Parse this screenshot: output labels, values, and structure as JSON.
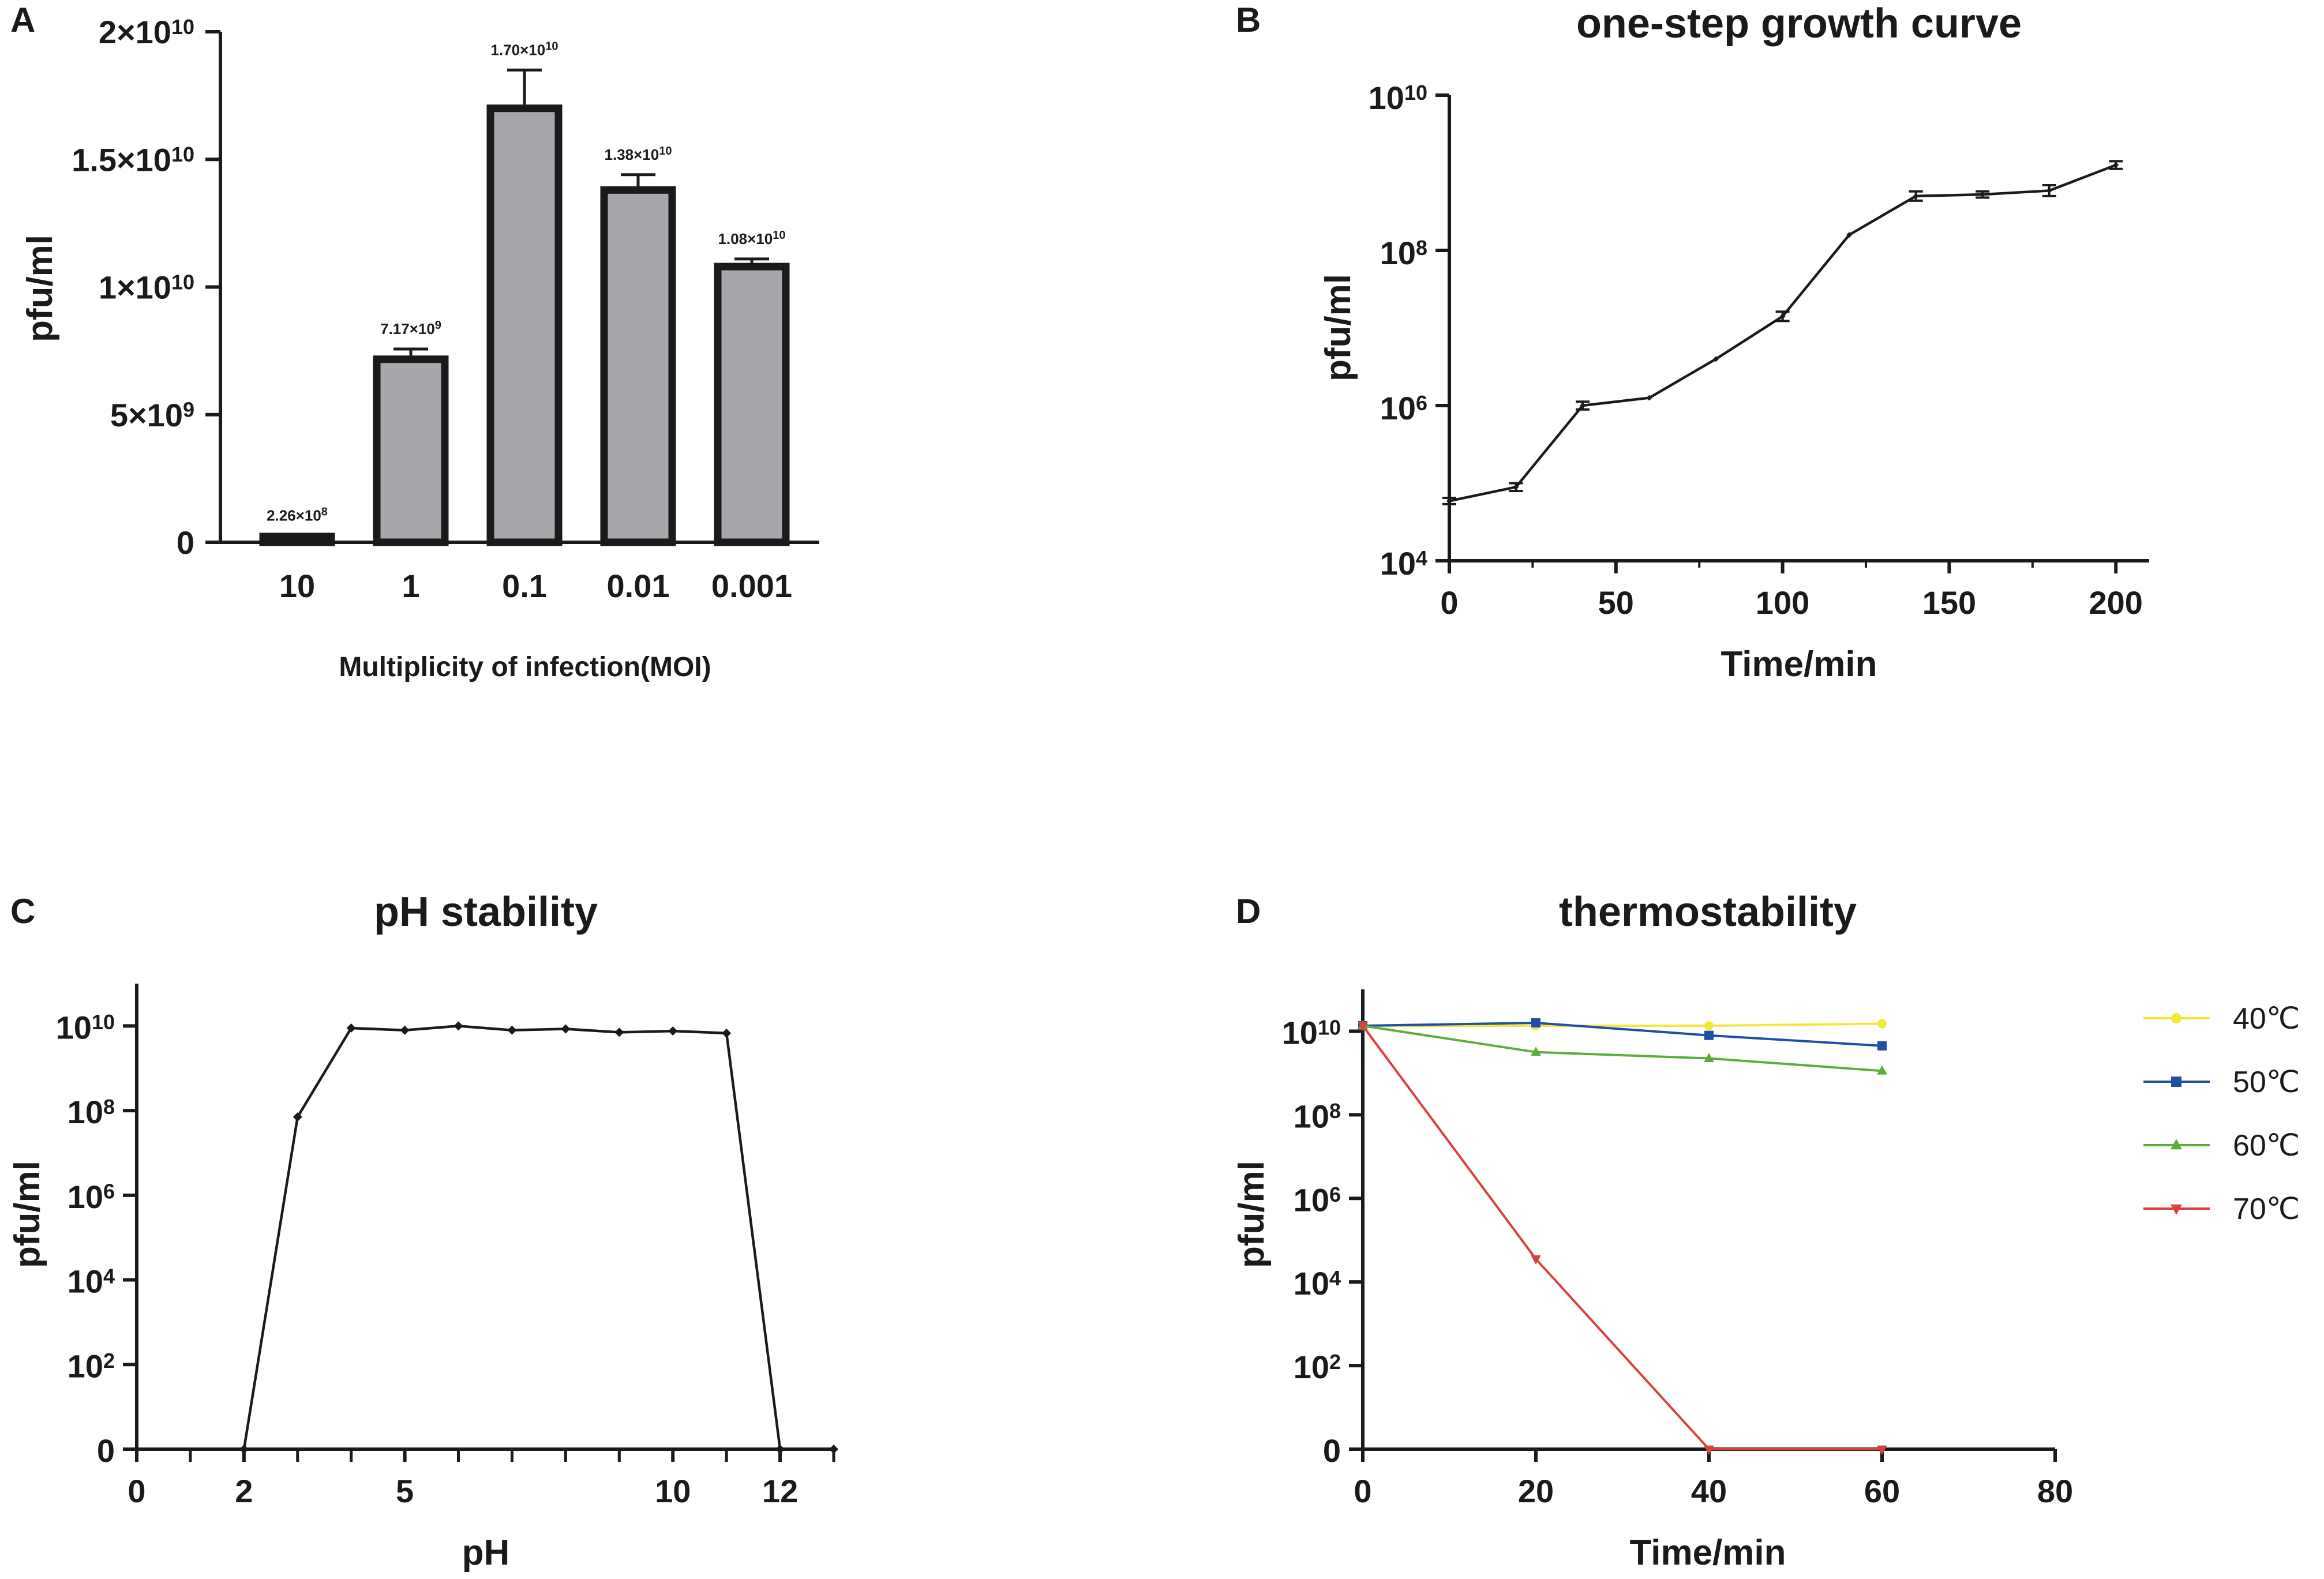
{
  "charts": [
    {
      "panel": "A",
      "type": "bar",
      "title": "",
      "xlabel": "Multiplicity of infection(MOI)",
      "ylabel": "pfu/ml",
      "categories": [
        "10",
        "1",
        "0.1",
        "0.01",
        "0.001"
      ],
      "values": [
        226000000,
        7170000000,
        17000000000,
        13800000000,
        10800000000
      ],
      "errors": [
        30000000,
        400000000,
        1500000000,
        600000000,
        300000000
      ],
      "value_labels": [
        {
          "mant": "2.26×10",
          "exp": "8"
        },
        {
          "mant": "7.17×10",
          "exp": "9"
        },
        {
          "mant": "1.70×10",
          "exp": "10"
        },
        {
          "mant": "1.38×10",
          "exp": "10"
        },
        {
          "mant": "1.08×10",
          "exp": "10"
        }
      ],
      "ylim": [
        0,
        20000000000
      ],
      "yticks": [
        {
          "value": 0,
          "mant": "0",
          "exp": ""
        },
        {
          "value": 5000000000,
          "mant": "5×10",
          "exp": "9"
        },
        {
          "value": 10000000000,
          "mant": "1×10",
          "exp": "10"
        },
        {
          "value": 15000000000,
          "mant": "1.5×10",
          "exp": "10"
        },
        {
          "value": 20000000000,
          "mant": "2×10",
          "exp": "10"
        }
      ],
      "bar_color": "#a6a7ab"
    },
    {
      "panel": "B",
      "type": "line",
      "title": "one-step growth curve",
      "xlabel": "Time/min",
      "ylabel": "pfu/ml",
      "yscale": "log10",
      "xlim": [
        0,
        210
      ],
      "ylim_log10": [
        4,
        10
      ],
      "xticks": [
        0,
        50,
        100,
        150,
        200
      ],
      "yticks": [
        {
          "mant": "10",
          "exp": "4",
          "log": 4
        },
        {
          "mant": "10",
          "exp": "6",
          "log": 6
        },
        {
          "mant": "10",
          "exp": "8",
          "log": 8
        },
        {
          "mant": "10",
          "exp": "10",
          "log": 10
        }
      ],
      "series": [
        {
          "name": "growth",
          "color": "#1a1a1a",
          "x": [
            0,
            20,
            40,
            60,
            80,
            100,
            120,
            140,
            160,
            180,
            200
          ],
          "log_y": [
            4.77,
            4.95,
            6.0,
            6.1,
            6.6,
            7.15,
            8.2,
            8.7,
            8.72,
            8.77,
            9.1
          ],
          "log_err": [
            0.04,
            0.05,
            0.05,
            0.0,
            0.0,
            0.06,
            0.0,
            0.06,
            0.04,
            0.07,
            0.05
          ]
        }
      ]
    },
    {
      "panel": "C",
      "type": "line",
      "title": "pH stability",
      "xlabel": "pH",
      "ylabel": "pfu/ml",
      "yscale": "log10",
      "xlim": [
        0,
        13
      ],
      "ylim_log10": [
        0,
        11
      ],
      "xticks_labeled": [
        0,
        2,
        5,
        10,
        12
      ],
      "xticks_minor": [
        1,
        3,
        4,
        6,
        7,
        8,
        9,
        11,
        13
      ],
      "yticks": [
        {
          "mant": "0",
          "exp": "",
          "log": 0
        },
        {
          "mant": "10",
          "exp": "2",
          "log": 2
        },
        {
          "mant": "10",
          "exp": "4",
          "log": 4
        },
        {
          "mant": "10",
          "exp": "6",
          "log": 6
        },
        {
          "mant": "10",
          "exp": "8",
          "log": 8
        },
        {
          "mant": "10",
          "exp": "10",
          "log": 10
        }
      ],
      "series": [
        {
          "name": "pH",
          "color": "#1a1a1a",
          "x": [
            2,
            3,
            4,
            5,
            6,
            7,
            8,
            9,
            10,
            11,
            12,
            13
          ],
          "log_y": [
            0,
            7.85,
            9.95,
            9.9,
            10.0,
            9.9,
            9.93,
            9.85,
            9.88,
            9.83,
            0,
            0
          ]
        }
      ]
    },
    {
      "panel": "D",
      "type": "line",
      "title": "thermostability",
      "xlabel": "Time/min",
      "ylabel": "pfu/ml",
      "yscale": "log10",
      "xlim": [
        0,
        80
      ],
      "ylim_log10": [
        0,
        11
      ],
      "xticks": [
        0,
        20,
        40,
        60,
        80
      ],
      "yticks": [
        {
          "mant": "0",
          "exp": "",
          "log": 0
        },
        {
          "mant": "10",
          "exp": "2",
          "log": 2
        },
        {
          "mant": "10",
          "exp": "4",
          "log": 4
        },
        {
          "mant": "10",
          "exp": "6",
          "log": 6
        },
        {
          "mant": "10",
          "exp": "8",
          "log": 8
        },
        {
          "mant": "10",
          "exp": "10",
          "log": 10
        }
      ],
      "legend_position": "right",
      "series": [
        {
          "name": "40℃",
          "color": "#f3e83a",
          "marker": "circle",
          "x": [
            0,
            20,
            40,
            60
          ],
          "log_y": [
            10.13,
            10.13,
            10.13,
            10.18
          ]
        },
        {
          "name": "50℃",
          "color": "#1f4fa3",
          "marker": "square",
          "x": [
            0,
            20,
            40,
            60
          ],
          "log_y": [
            10.13,
            10.2,
            9.9,
            9.65
          ]
        },
        {
          "name": "60℃",
          "color": "#5dad3a",
          "marker": "triangle-up",
          "x": [
            0,
            20,
            40,
            60
          ],
          "log_y": [
            10.13,
            9.5,
            9.35,
            9.05
          ]
        },
        {
          "name": "70℃",
          "color": "#d9413a",
          "marker": "triangle-down",
          "x": [
            0,
            20,
            40,
            60
          ],
          "log_y": [
            10.13,
            4.55,
            0,
            0
          ]
        }
      ]
    }
  ]
}
